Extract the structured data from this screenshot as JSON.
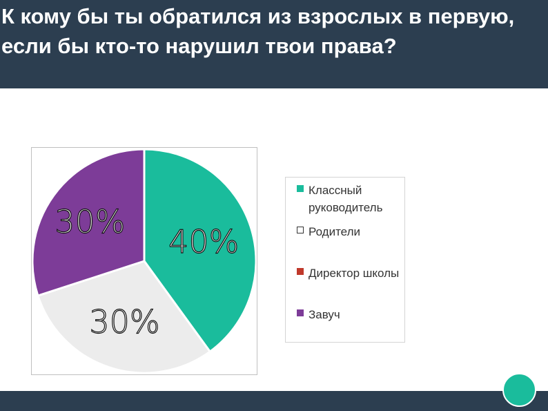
{
  "title": "К кому бы ты обратился из взрослых в первую, если бы кто-то нарушил твои права?",
  "chart_data": {
    "type": "pie",
    "title": "",
    "slices": [
      {
        "label": "Классный руководитель",
        "value": 40,
        "color": "#1abc9c",
        "annotation": "40%"
      },
      {
        "label": "Родители",
        "value": 30,
        "color": "#ececec",
        "annotation": "30%"
      },
      {
        "label": "Директор школы",
        "value": 0,
        "color": "#c0392b",
        "annotation": ""
      },
      {
        "label": "Завуч",
        "value": 30,
        "color": "#7d3c98",
        "annotation": "30%"
      }
    ],
    "legend_position": "right",
    "annotations_handwritten": true
  },
  "legend": {
    "items": [
      {
        "label": "Классный руководитель",
        "color": "#1abc9c"
      },
      {
        "label": "Родители",
        "color": "#ffffff"
      },
      {
        "label": "Директор школы",
        "color": "#c0392b"
      },
      {
        "label": "Завуч",
        "color": "#7d3c98"
      }
    ]
  },
  "footer": {
    "accent_color": "#1abc9c",
    "bar_color": "#2c3e50"
  }
}
